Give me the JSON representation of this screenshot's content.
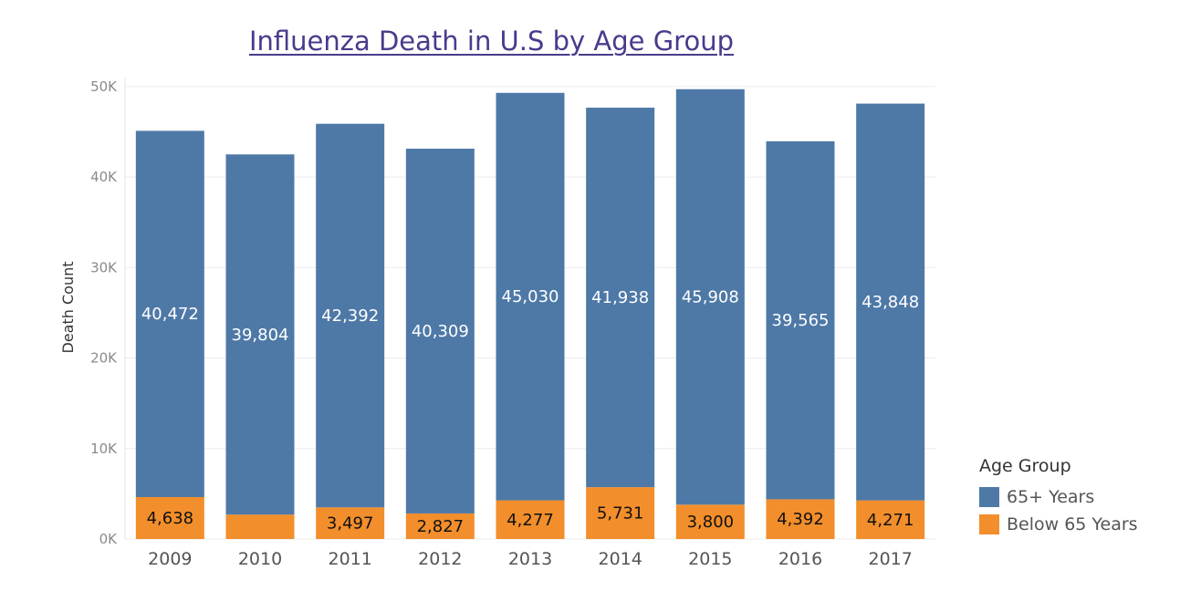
{
  "chart_data": {
    "type": "bar",
    "stacked": true,
    "title": "Influenza Death in U.S by Age Group",
    "xlabel": "",
    "ylabel": "Death Count",
    "ylim": [
      0,
      51000
    ],
    "yticks": [
      0,
      10000,
      20000,
      30000,
      40000,
      50000
    ],
    "ytick_labels": [
      "0K",
      "10K",
      "20K",
      "30K",
      "40K",
      "50K"
    ],
    "grid": true,
    "legend": {
      "title": "Age Group",
      "position": "right-bottom"
    },
    "categories": [
      "2009",
      "2010",
      "2011",
      "2012",
      "2013",
      "2014",
      "2015",
      "2016",
      "2017"
    ],
    "series": [
      {
        "name": "Below 65 Years",
        "color": "#f28e2b",
        "values": [
          4638,
          2700,
          3497,
          2827,
          4277,
          5731,
          3800,
          4392,
          4271
        ],
        "labels": [
          "4,638",
          "",
          "3,497",
          "2,827",
          "4,277",
          "5,731",
          "3,800",
          "4,392",
          "4,271"
        ]
      },
      {
        "name": "65+ Years",
        "color": "#4e79a7",
        "values": [
          40472,
          39804,
          42392,
          40309,
          45030,
          41938,
          45908,
          39565,
          43848
        ],
        "labels": [
          "40,472",
          "39,804",
          "42,392",
          "40,309",
          "45,030",
          "41,938",
          "45,908",
          "39,565",
          "43,848"
        ]
      }
    ]
  }
}
